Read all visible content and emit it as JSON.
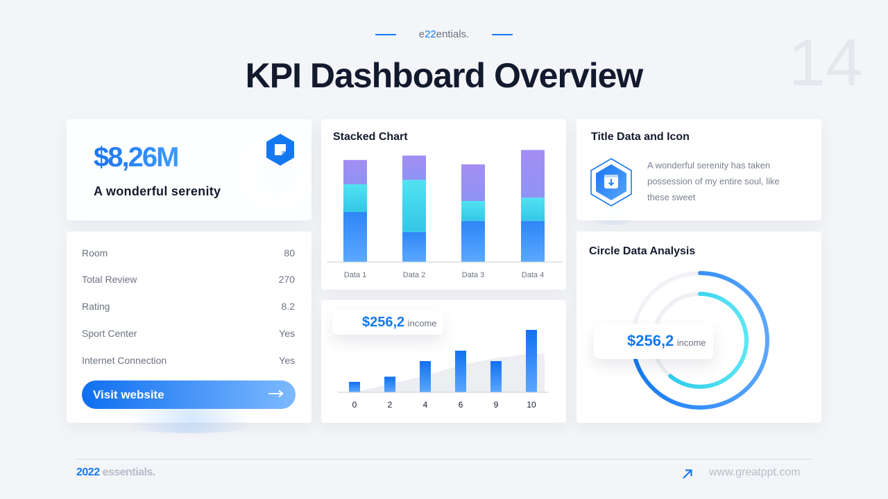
{
  "header": {
    "brand_prefix": "e",
    "brand_highlight": "22",
    "brand_suffix": "entials.",
    "title": "KPI Dashboard Overview",
    "page_number": "14"
  },
  "summary_card": {
    "value": "$8,26M",
    "label": "A wonderful  serenity",
    "icon": "sticky-note-icon"
  },
  "kpi_list": {
    "rows": [
      {
        "label": "Room",
        "value": "80"
      },
      {
        "label": "Total Review",
        "value": "270"
      },
      {
        "label": "Rating",
        "value": "8.2"
      },
      {
        "label": "Sport  Center",
        "value": "Yes"
      },
      {
        "label": "Internet  Connection",
        "value": "Yes"
      }
    ],
    "button_label": "Visit website",
    "button_icon": "arrow-right-icon"
  },
  "title_data": {
    "title": "Title Data and Icon",
    "description_lines": [
      "A wonderful serenity has taken",
      "possession of my entire soul, like",
      "these sweet"
    ],
    "icon": "download-box-icon"
  },
  "income_chip": {
    "value": "$256,2",
    "unit": "income"
  },
  "circle_chip": {
    "value": "$256,2",
    "unit": "income"
  },
  "circle": {
    "title": "Circle Data Analysis"
  },
  "colors": {
    "accent": "#1479f0",
    "stack_bottom": "#2f86f6",
    "stack_middle": "#4fd9ee",
    "stack_top": "#9c8cf2"
  },
  "chart_data": [
    {
      "type": "bar",
      "stacked": true,
      "title": "Stacked Chart",
      "categories": [
        "Data 1",
        "Data 2",
        "Data 3",
        "Data 4"
      ],
      "series": [
        {
          "values": [
            45,
            27,
            37,
            37
          ]
        },
        {
          "values": [
            25,
            47,
            18,
            21
          ]
        },
        {
          "values": [
            22,
            22,
            33,
            43
          ]
        }
      ],
      "ylim": [
        0,
        100
      ]
    },
    {
      "type": "bar",
      "categories": [
        "0",
        "2",
        "4",
        "6",
        "9",
        "10"
      ],
      "values": [
        10,
        15,
        30,
        40,
        30,
        60
      ],
      "background_area": [
        0,
        8,
        16,
        26,
        33,
        37
      ],
      "ylim": [
        0,
        70
      ]
    },
    {
      "type": "pie",
      "title": "Circle Data Analysis",
      "rings": [
        {
          "name": "outer",
          "percent": 73
        },
        {
          "name": "inner",
          "percent": 61
        }
      ]
    }
  ]
}
